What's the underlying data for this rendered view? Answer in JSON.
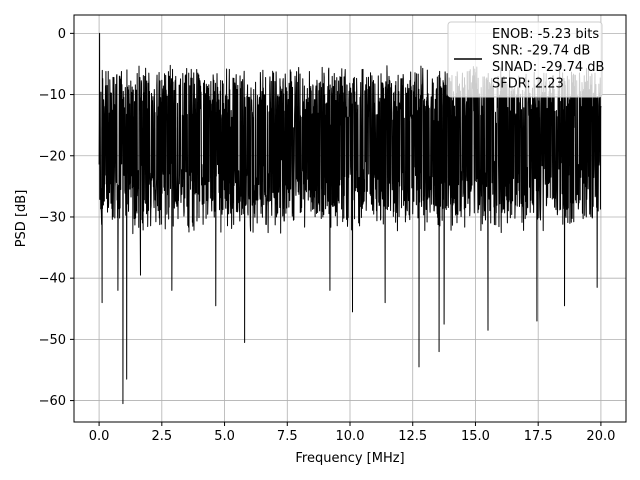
{
  "chart_data": {
    "type": "line",
    "xlabel": "Frequency [MHz]",
    "ylabel": "PSD [dB]",
    "xlim": [
      -1.0,
      21.0
    ],
    "ylim": [
      -63.5,
      3.0
    ],
    "xticks": [
      0.0,
      2.5,
      5.0,
      7.5,
      10.0,
      12.5,
      15.0,
      17.5,
      20.0
    ],
    "xtick_labels": [
      "0.0",
      "2.5",
      "5.0",
      "7.5",
      "10.0",
      "12.5",
      "15.0",
      "17.5",
      "20.0"
    ],
    "yticks": [
      0,
      -10,
      -20,
      -30,
      -40,
      -50,
      -60
    ],
    "ytick_labels": [
      "0",
      "−10",
      "−20",
      "−30",
      "−40",
      "−50",
      "−60"
    ],
    "grid": true,
    "legend_placement": "upper-right",
    "series_color": "#000000",
    "legend": {
      "lines": [
        "ENOB: -5.23 bits",
        "SNR: -29.74 dB",
        "SINAD: -29.74 dB",
        "SFDR: 2.23"
      ]
    },
    "series": [
      {
        "x_start": 0.0,
        "x_end": 20.0,
        "noise_floor_upper": [
          -5,
          -7
        ],
        "noise_floor_lower": [
          -28,
          -33
        ],
        "peak": {
          "x": 0.02,
          "y": 0.0
        },
        "dips": [
          {
            "x": 0.12,
            "y": -44.0
          },
          {
            "x": 0.75,
            "y": -42.0
          },
          {
            "x": 0.95,
            "y": -60.5
          },
          {
            "x": 1.1,
            "y": -56.5
          },
          {
            "x": 1.65,
            "y": -39.5
          },
          {
            "x": 2.9,
            "y": -42.0
          },
          {
            "x": 4.65,
            "y": -44.5
          },
          {
            "x": 5.8,
            "y": -50.5
          },
          {
            "x": 9.2,
            "y": -42.0
          },
          {
            "x": 10.1,
            "y": -45.5
          },
          {
            "x": 11.4,
            "y": -44.0
          },
          {
            "x": 12.75,
            "y": -54.5
          },
          {
            "x": 13.55,
            "y": -52.0
          },
          {
            "x": 13.75,
            "y": -47.5
          },
          {
            "x": 15.5,
            "y": -48.5
          },
          {
            "x": 17.45,
            "y": -47.0
          },
          {
            "x": 18.55,
            "y": -44.5
          },
          {
            "x": 19.85,
            "y": -41.5
          }
        ]
      }
    ]
  }
}
